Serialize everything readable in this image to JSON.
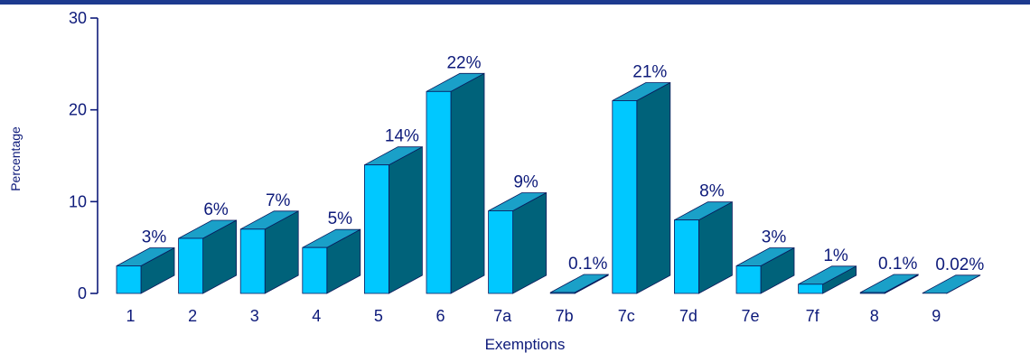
{
  "chart_data": {
    "type": "bar",
    "style": "3d",
    "xlabel": "Exemptions",
    "ylabel": "Percentage",
    "ylim": [
      0,
      30
    ],
    "yticks": [
      0,
      10,
      20,
      30
    ],
    "grid": false,
    "categories": [
      "1",
      "2",
      "3",
      "4",
      "5",
      "6",
      "7a",
      "7b",
      "7c",
      "7d",
      "7e",
      "7f",
      "8",
      "9"
    ],
    "values": [
      3,
      6,
      7,
      5,
      14,
      22,
      9,
      0.1,
      21,
      8,
      3,
      1,
      0.1,
      0.02
    ],
    "data_labels": [
      "3%",
      "6%",
      "7%",
      "5%",
      "14%",
      "22%",
      "9%",
      "0.1%",
      "21%",
      "8%",
      "3%",
      "1%",
      "0.1%",
      "0.02%"
    ],
    "colors": {
      "front": "#00c8ff",
      "side": "#00627a",
      "top": "#1aa0c8",
      "outline": "#0a1a5c",
      "text": "#0d1a7a",
      "axis": "#0d1a7a",
      "top_rule": "#1d3a8f"
    }
  }
}
